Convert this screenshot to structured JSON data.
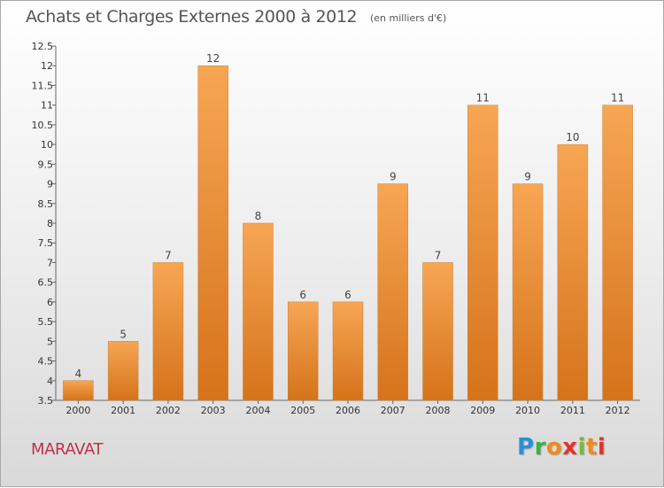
{
  "header": {
    "title": "Achats et Charges Externes 2000 à 2012",
    "unit": "(en milliers d'€)"
  },
  "footer": {
    "commune": "MARAVAT",
    "logo_letters": [
      "P",
      "r",
      "o",
      "x",
      "i",
      "t",
      "i"
    ]
  },
  "colors": {
    "bar_light": "#f7a654",
    "bar_dark": "#d5731a",
    "commune": "#c0304e"
  },
  "chart_data": {
    "type": "bar",
    "title": "Achats et Charges Externes 2000 à 2012",
    "subtitle": "(en milliers d'€)",
    "xlabel": "",
    "ylabel": "",
    "categories": [
      "2000",
      "2001",
      "2002",
      "2003",
      "2004",
      "2005",
      "2006",
      "2007",
      "2008",
      "2009",
      "2010",
      "2011",
      "2012"
    ],
    "values": [
      4,
      5,
      7,
      12,
      8,
      6,
      6,
      9,
      7,
      11,
      9,
      10,
      11
    ],
    "data_labels": [
      "4",
      "5",
      "7",
      "12",
      "8",
      "6",
      "6",
      "9",
      "7",
      "11",
      "9",
      "10",
      "11"
    ],
    "ylim": [
      3.5,
      12.5
    ],
    "yticks": [
      "3.5",
      "4",
      "4.5",
      "5",
      "5.5",
      "6",
      "6.5",
      "7",
      "7.5",
      "8",
      "8.5",
      "9",
      "9.5",
      "10",
      "10.5",
      "11",
      "11.5",
      "12",
      "12.5"
    ],
    "grid": false,
    "legend": "none"
  }
}
